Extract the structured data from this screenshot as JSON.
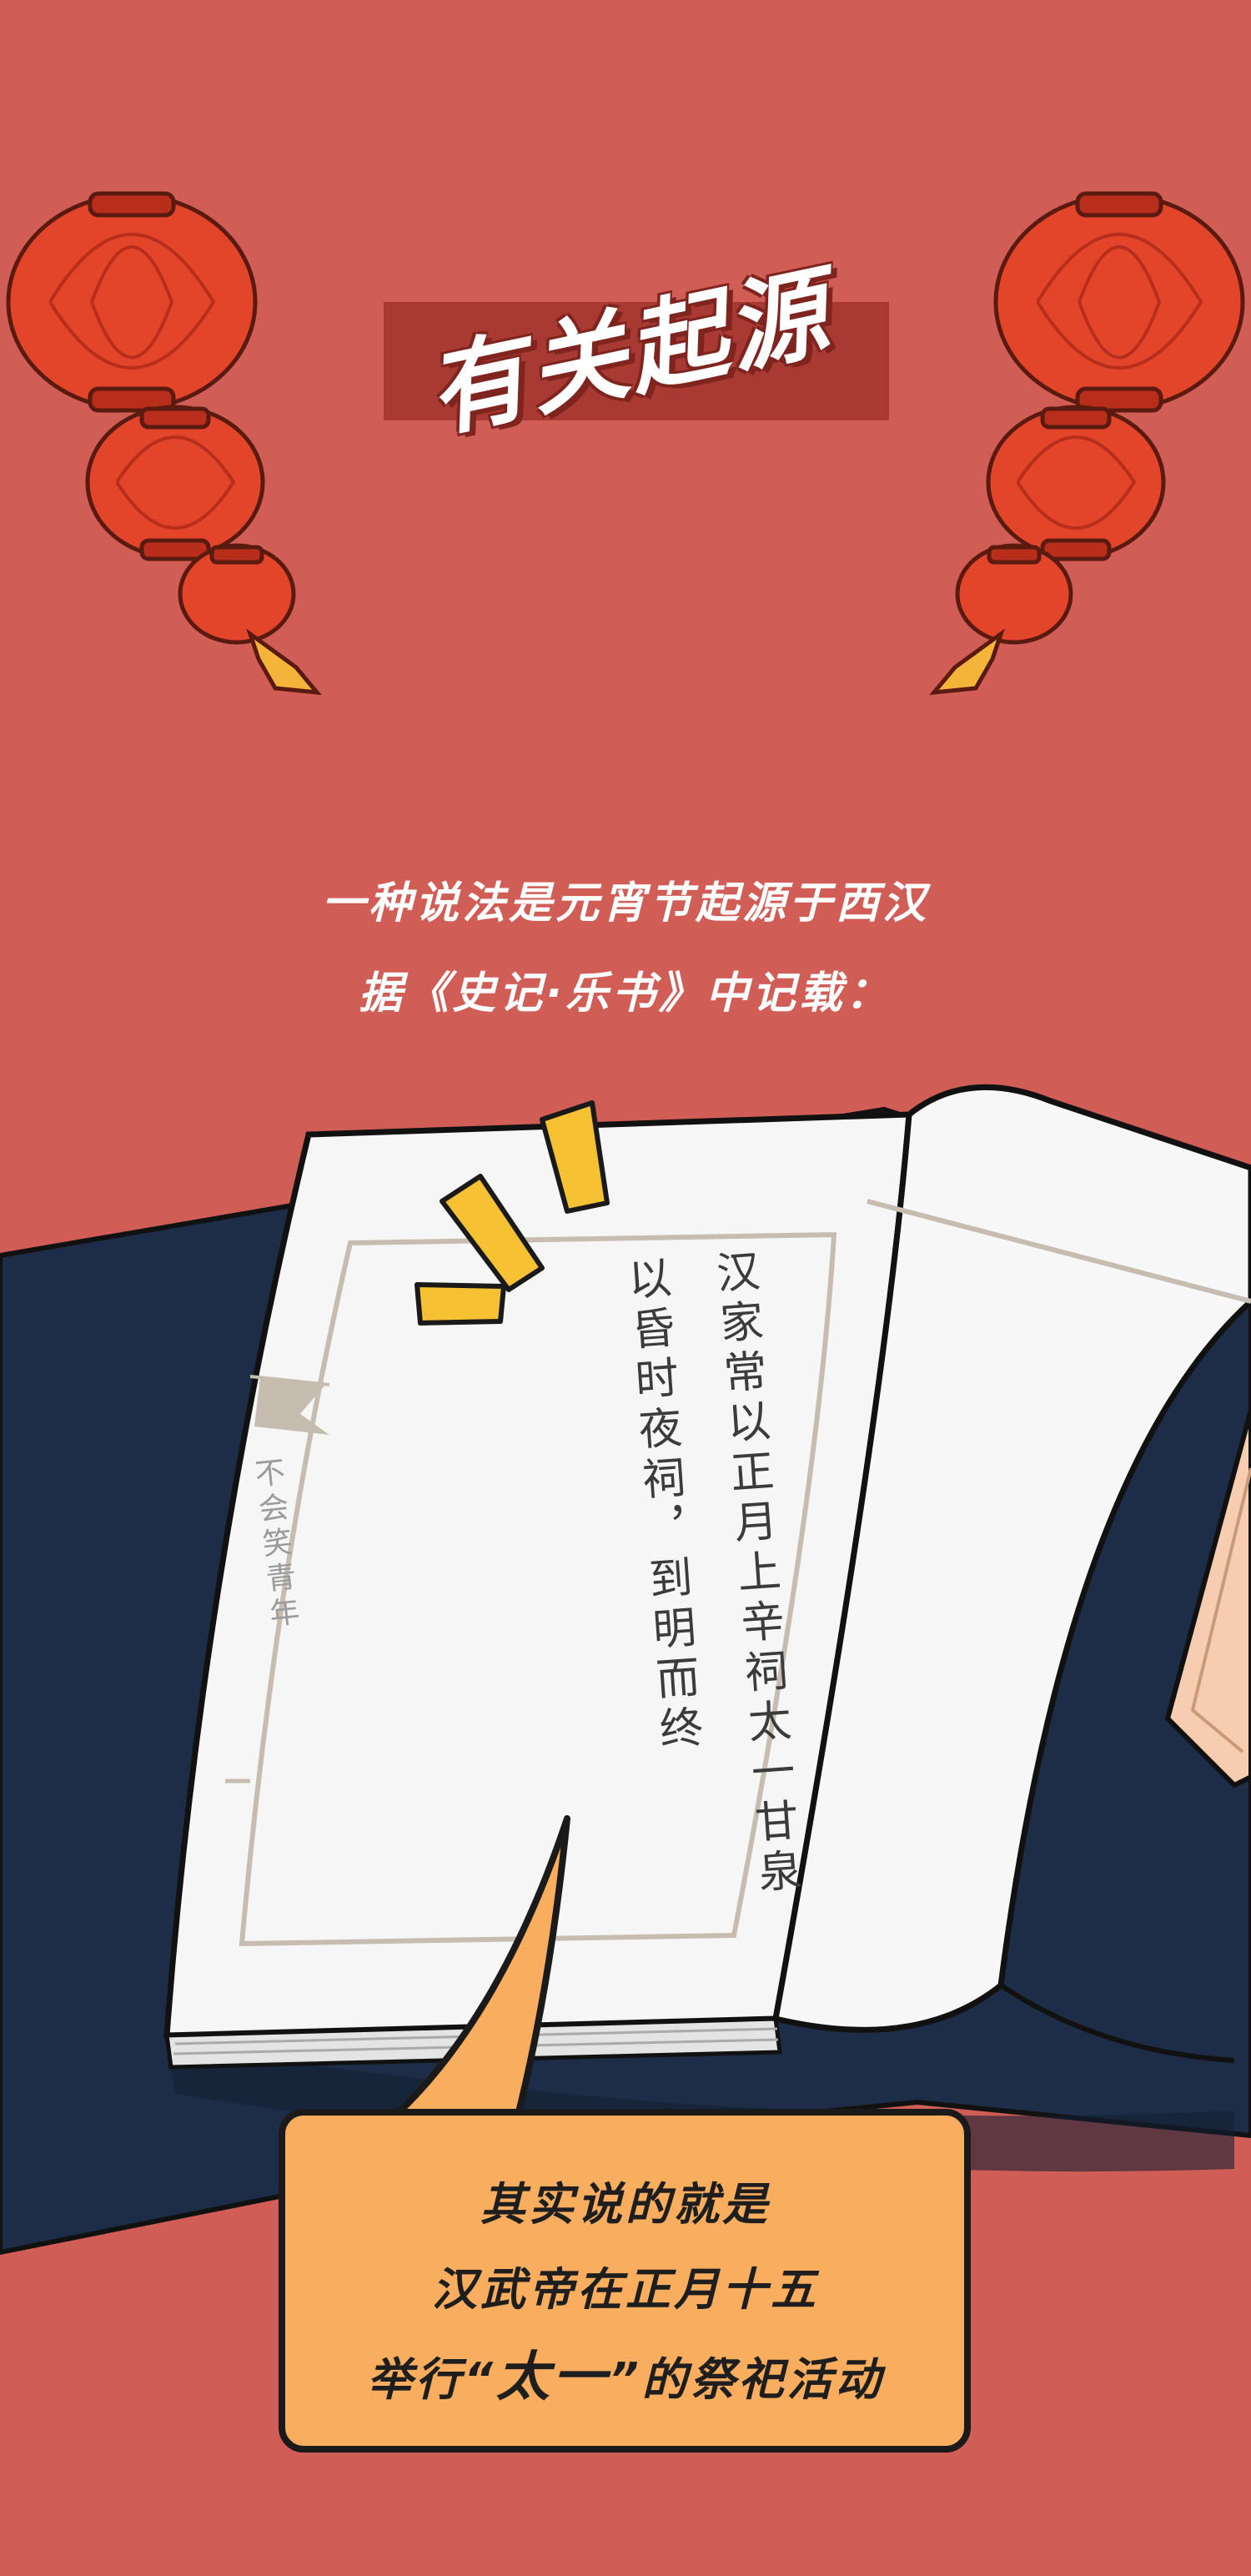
{
  "title": "有关起源",
  "intro": {
    "line1": "一种说法是元宵节起源于西汉",
    "line2": "据《史记·乐书》中记载："
  },
  "book": {
    "column1": "汉家常以正月上辛祠太一甘泉",
    "column2": "以昏时夜祠，到明而终",
    "watermark": "不会笑青年"
  },
  "bubble": {
    "line1": "其实说的就是",
    "line2": "汉武帝在正月十五",
    "line3_before": "举行“",
    "line3_emphasis": "太一",
    "line3_after": "”的祭祀活动"
  },
  "colors": {
    "background": "#d15e56",
    "title_banner": "#a93a33",
    "lantern": "#e2452a",
    "dark_panel": "#1d2d47",
    "bubble": "#f9ad5e",
    "accent_marks": "#f6c233"
  }
}
